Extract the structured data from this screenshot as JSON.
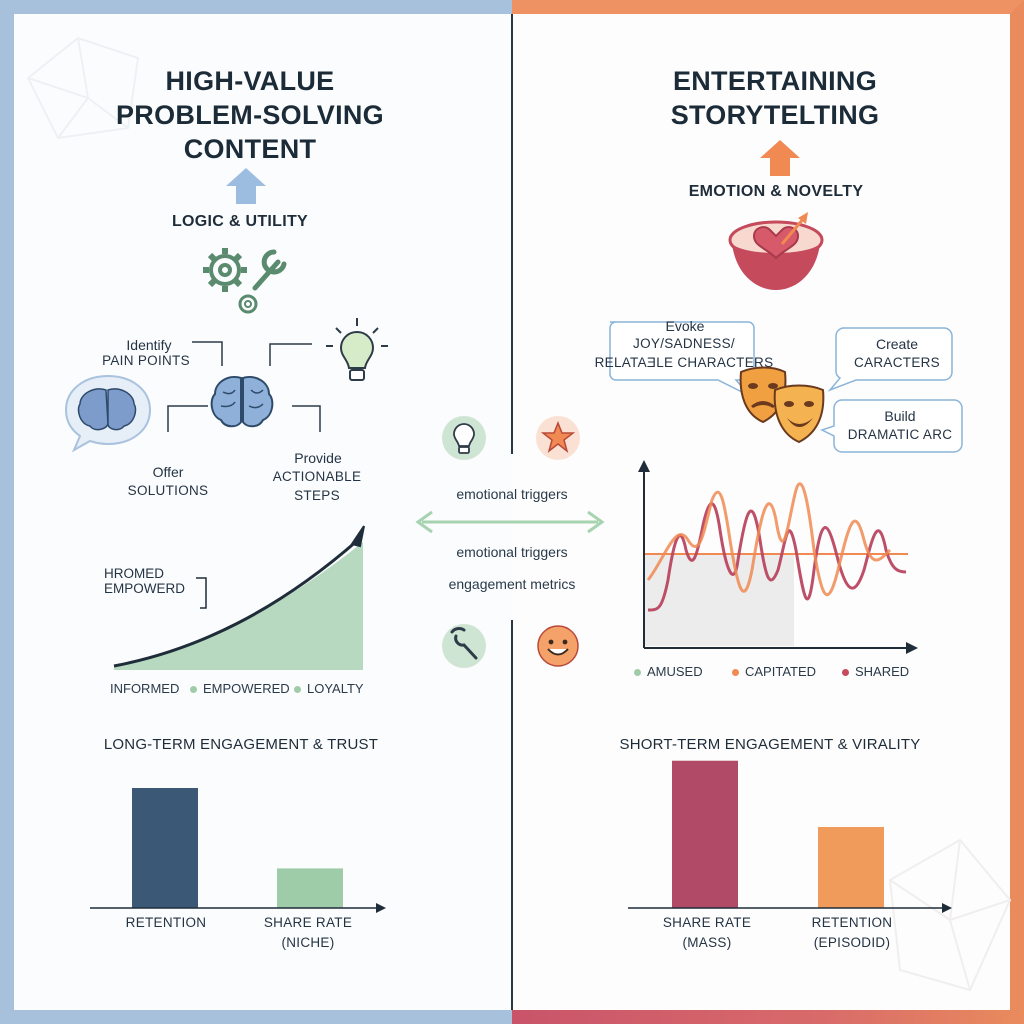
{
  "left": {
    "title_lines": [
      "HIGH-VALUE",
      "PROBLEM-SOLVING",
      "CONTENT"
    ],
    "driver": "LOGIC & UTILITY",
    "steps": {
      "identify_1": "Identify",
      "identify_2": "PAIN POINTS",
      "offer_1": "Offer",
      "offer_2": "SOLUTIONS",
      "provide_1": "Provide",
      "provide_2": "ACTIONABLE",
      "provide_3": "STEPS"
    },
    "growth_chart": {
      "annotation_1": "HROMED",
      "annotation_2": "EMPOWERD",
      "legend": [
        "INFORMED",
        "EMPOWERED",
        "LOYALTY"
      ]
    },
    "outcome": "LONG-TERM ENGAGEMENT & TRUST"
  },
  "right": {
    "title_lines": [
      "ENTERTAINING",
      "STORYTELTING"
    ],
    "driver": "EMOTION & NOVELTY",
    "callouts": {
      "evoke_1": "Evoke",
      "evoke_2": "JOY/SADNESS/",
      "evoke_3": "RELATAƎLE CHARACTERS",
      "create_1": "Create",
      "create_2": "CARACTERS",
      "build_1": "Build",
      "build_2": "DRAMATIC ARC"
    },
    "wave_chart": {
      "legend": [
        "AMUSED",
        "CAPITATED",
        "SHARED"
      ]
    },
    "outcome": "SHORT-TERM ENGAGEMENT & VIRALITY"
  },
  "middle": {
    "label_1": "emotional triggers",
    "label_2": "emotional triggers",
    "label_3": "engagement metrics"
  },
  "colors": {
    "left_accent": "#a7c0dc",
    "right_accent": "#e98b5d",
    "retention_bar": "#3b5877",
    "share_niche_bar": "#9fcca8",
    "share_mass_bar": "#b14a66",
    "retention_episodic_bar": "#f09a5c"
  },
  "chart_data": [
    {
      "type": "bar",
      "categories": [
        "RETENTION",
        "SHARE RATE\n(NICHE)"
      ],
      "values": [
        100,
        33
      ],
      "ylim": [
        0,
        110
      ]
    },
    {
      "type": "bar",
      "categories": [
        "SHARE RATE\n(MASS)",
        "RETENTION\n(EPISODID)"
      ],
      "values": [
        100,
        55
      ],
      "ylim": [
        0,
        110
      ]
    }
  ],
  "bar_labels": {
    "left": [
      [
        "RETENTION"
      ],
      [
        "SHARE RATE",
        "(NICHE)"
      ]
    ],
    "right": [
      [
        "SHARE RATE",
        "(MASS)"
      ],
      [
        "RETENTION",
        "(EPISODID)"
      ]
    ]
  }
}
